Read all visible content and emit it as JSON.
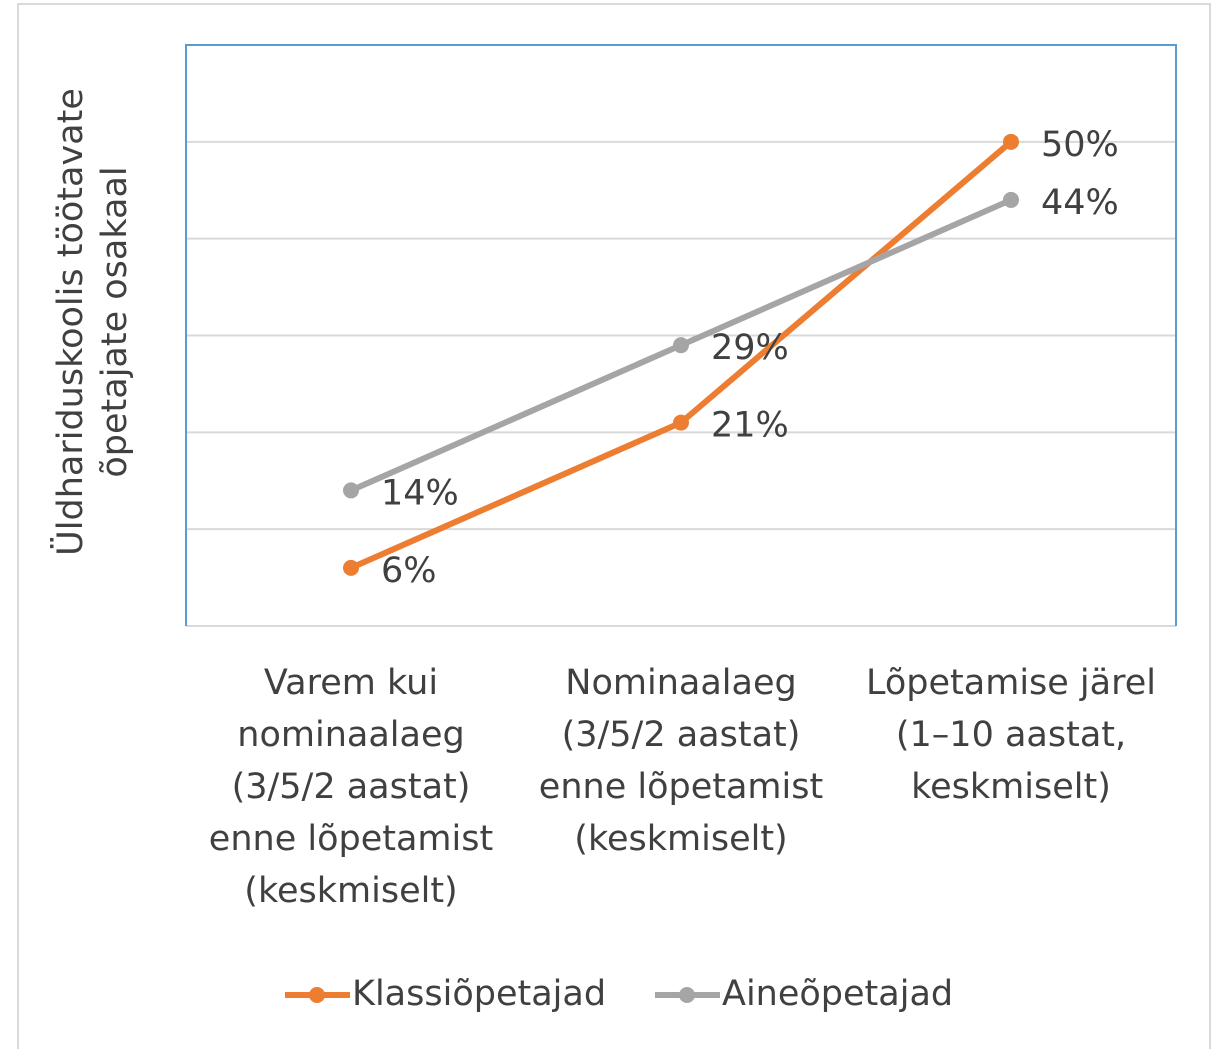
{
  "chart_data": {
    "type": "line",
    "y_axis_label": "Üldhariduskoolis töötavate\nõpetajate osakaal",
    "categories": [
      "Varem kui\nnominaalaeg\n(3/5/2 aastat)\nenne lõpetamist\n(keskmiselt)",
      "Nominaalaeg\n(3/5/2 aastat)\nenne lõpetamist\n(keskmiselt)",
      "Lõpetamise järel\n(1–10 aastat,\nkeskmiselt)"
    ],
    "series": [
      {
        "name": "Klassiõpetajad",
        "color": "#ed7d31",
        "values": [
          6,
          21,
          50
        ],
        "value_labels": [
          "6%",
          "21%",
          "50%"
        ]
      },
      {
        "name": "Aineõpetajad",
        "color": "#a5a5a5",
        "values": [
          14,
          29,
          44
        ],
        "value_labels": [
          "14%",
          "29%",
          "44%"
        ]
      }
    ],
    "ylim": [
      0,
      60
    ],
    "yticks": [
      0,
      10,
      20,
      30,
      40,
      50,
      60
    ],
    "grid": true,
    "legend": "bottom"
  }
}
